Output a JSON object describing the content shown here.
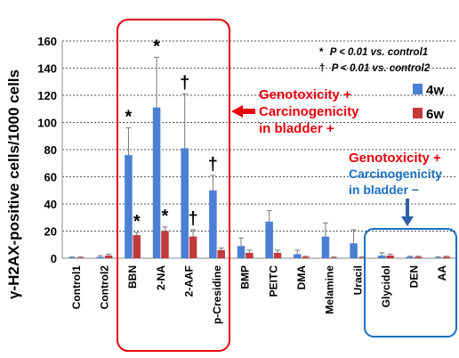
{
  "chart_data": {
    "type": "bar",
    "ylabel": "γ-H2AX-positive cells/1000 cells",
    "ylim": [
      0,
      160
    ],
    "yticks": [
      0,
      20,
      40,
      60,
      80,
      100,
      120,
      140,
      160
    ],
    "grid": "horizontal-dashed",
    "categories": [
      "Control1",
      "Control2",
      "BBN",
      "2-NA",
      "2-AAF",
      "p-Cresidine",
      "BMP",
      "PEITC",
      "DMA",
      "Melamine",
      "Uracil",
      "Glycidol",
      "DEN",
      "AA"
    ],
    "series": [
      {
        "name": "4w",
        "color": "#4a7fd4",
        "values": [
          0.5,
          1,
          76,
          111,
          81,
          50,
          9,
          27,
          3,
          16,
          11,
          2,
          1,
          0.5
        ],
        "errors": [
          0.5,
          1,
          20,
          37,
          40,
          11,
          6,
          8,
          3,
          10,
          10,
          2,
          0.5,
          0.5
        ]
      },
      {
        "name": "6w",
        "color": "#c23b3b",
        "values": [
          0.5,
          2,
          17,
          20,
          16,
          6,
          4,
          4,
          1,
          0.5,
          0.5,
          2,
          1,
          1
        ],
        "errors": [
          0.5,
          1,
          2,
          3,
          5,
          1.5,
          2,
          2,
          0.5,
          0.5,
          0.5,
          1,
          0.5,
          0.5
        ]
      }
    ],
    "markers": [
      {
        "category": "BBN",
        "series": "4w",
        "symbol": "*"
      },
      {
        "category": "2-NA",
        "series": "4w",
        "symbol": "*"
      },
      {
        "category": "2-AAF",
        "series": "4w",
        "symbol": "†"
      },
      {
        "category": "p-Cresidine",
        "series": "4w",
        "symbol": "†"
      },
      {
        "category": "BBN",
        "series": "6w",
        "symbol": "*"
      },
      {
        "category": "2-NA",
        "series": "6w",
        "symbol": "*"
      },
      {
        "category": "2-AAF",
        "series": "6w",
        "symbol": "†"
      }
    ],
    "notes": [
      {
        "symbol": "*",
        "text": "P < 0.01 vs. control1"
      },
      {
        "symbol": "†",
        "text": "P < 0.01 vs. control2"
      }
    ],
    "annotations": {
      "positive": [
        "Genotoxicity +",
        "Carcinogenicity",
        "in bladder +"
      ],
      "negative": [
        "Genotoxicity +",
        "Carcinogenicity",
        "in bladder −"
      ]
    },
    "colors": {
      "red": "#e8000b",
      "blue": "#1a6fc2",
      "grid": "#555555"
    }
  }
}
